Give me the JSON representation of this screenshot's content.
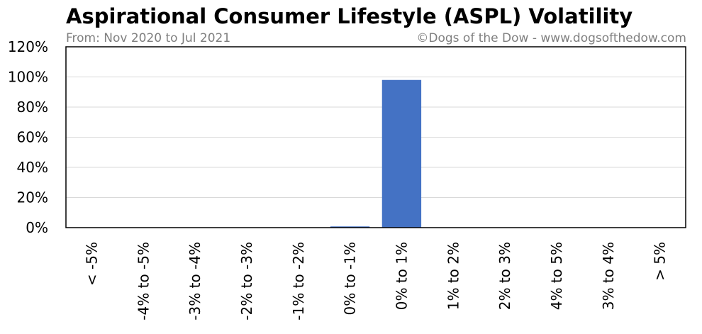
{
  "chart_data": {
    "type": "bar",
    "title": "Aspirational Consumer Lifestyle (ASPL) Volatility",
    "subtitle": "From: Nov 2020 to Jul 2021",
    "credit": "©Dogs of the Dow - www.dogsofthedow.com",
    "categories": [
      "< -5%",
      "-4% to -5%",
      "-3% to -4%",
      "-2% to -3%",
      "-1% to -2%",
      "0% to -1%",
      "0% to 1%",
      "1% to 2%",
      "2% to 3%",
      "4% to 5%",
      "3% to 4%",
      "> 5%"
    ],
    "values": [
      0,
      0,
      0,
      0,
      0,
      0.8,
      98,
      0,
      0,
      0,
      0,
      0
    ],
    "ylim": [
      0,
      120
    ],
    "yticks": [
      0,
      20,
      40,
      60,
      80,
      100,
      120
    ],
    "ytick_labels": [
      "0%",
      "20%",
      "40%",
      "60%",
      "80%",
      "100%",
      "120%"
    ],
    "bar_color": "#4472c4",
    "grid": true,
    "legend": "none"
  }
}
